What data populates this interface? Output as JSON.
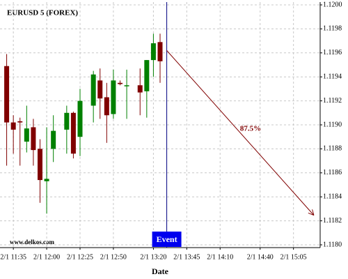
{
  "chart_data": {
    "type": "candlestick",
    "title": "EURUSD 5 (FOREX)",
    "source": "www.delkos.com",
    "x_label": "Date",
    "x": [
      "2/1 11:30",
      "2/1 11:35",
      "2/1 11:40",
      "2/1 11:45",
      "2/1 11:50",
      "2/1 11:55",
      "2/1 12:00",
      "2/1 12:05",
      "2/1 12:15",
      "2/1 12:20",
      "2/1 12:25",
      "2/1 12:35",
      "2/1 12:40",
      "2/1 12:45",
      "2/1 12:50",
      "2/1 12:55",
      "2/1 13:00",
      "2/1 13:10",
      "2/1 13:15",
      "2/1 13:20",
      "2/1 13:25"
    ],
    "open": [
      1.11949,
      1.11902,
      1.11903,
      1.11886,
      1.11898,
      1.1188,
      1.11853,
      1.1188,
      1.11896,
      1.1191,
      1.1189,
      1.11916,
      1.11937,
      1.11923,
      1.11909,
      1.11935,
      1.11933,
      1.11933,
      1.11928,
      1.11954,
      1.11969
    ],
    "high": [
      1.11959,
      1.11908,
      1.11906,
      1.11916,
      1.11905,
      1.11888,
      1.11898,
      1.11908,
      1.11916,
      1.11911,
      1.1193,
      1.11945,
      1.11947,
      1.11935,
      1.11946,
      1.11937,
      1.11946,
      1.11947,
      1.11954,
      1.11976,
      1.11976
    ],
    "low": [
      1.11866,
      1.11876,
      1.11866,
      1.11877,
      1.11866,
      1.11835,
      1.11826,
      1.11869,
      1.11876,
      1.11872,
      1.11874,
      1.11902,
      1.11905,
      1.11885,
      1.11905,
      1.11933,
      1.11905,
      1.11908,
      1.11906,
      1.1194,
      1.11935
    ],
    "close": [
      1.11902,
      1.11896,
      1.11902,
      1.11897,
      1.11879,
      1.11854,
      1.11855,
      1.11895,
      1.1191,
      1.11876,
      1.1192,
      1.11942,
      1.11922,
      1.11908,
      1.11937,
      1.11934,
      1.11933,
      1.11927,
      1.11954,
      1.11968,
      1.11953
    ],
    "up_color": "#008000",
    "down_color": "#800000",
    "xlim": [
      "2/1 11:25",
      "2/1 15:25"
    ],
    "xticks": [
      "2/1 11:35",
      "2/1 12:00",
      "2/1 12:25",
      "2/1 12:50",
      "2/1 13:20",
      "2/1 13:45",
      "2/1 14:10",
      "2/1 14:40",
      "2/1 15:05"
    ],
    "ylim": [
      1.118,
      1.12
    ],
    "yticks": [
      {
        "value": 1.12,
        "label": "1.1200"
      },
      {
        "value": 1.1198,
        "label": "1.1198"
      },
      {
        "value": 1.1196,
        "label": "1.1196"
      },
      {
        "value": 1.1194,
        "label": "1.1194"
      },
      {
        "value": 1.1192,
        "label": "1.1192"
      },
      {
        "value": 1.119,
        "label": "1.1190"
      },
      {
        "value": 1.1188,
        "label": "1.1188"
      },
      {
        "value": 1.1186,
        "label": "1.1186"
      },
      {
        "value": 1.1184,
        "label": "1.1184"
      },
      {
        "value": 1.1182,
        "label": "1.1182"
      },
      {
        "value": 1.118,
        "label": "1.1180"
      }
    ],
    "grid": true,
    "event": {
      "x": "2/1 13:30",
      "label": "Event"
    },
    "annotation": {
      "text": "87.5%",
      "start": {
        "x": "2/1 13:30",
        "y": 1.11962
      },
      "end": {
        "x": "2/1 15:20",
        "y": 1.11825
      }
    }
  }
}
